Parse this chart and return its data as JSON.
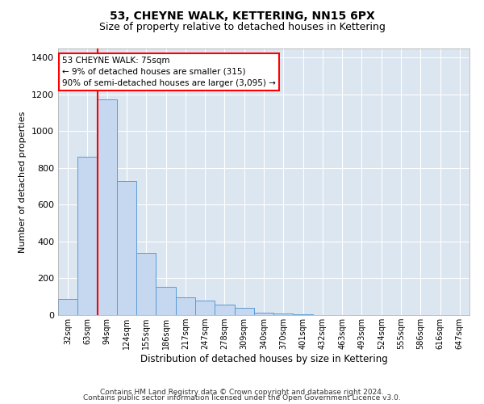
{
  "title": "53, CHEYNE WALK, KETTERING, NN15 6PX",
  "subtitle": "Size of property relative to detached houses in Kettering",
  "xlabel": "Distribution of detached houses by size in Kettering",
  "ylabel": "Number of detached properties",
  "bins": [
    "32sqm",
    "63sqm",
    "94sqm",
    "124sqm",
    "155sqm",
    "186sqm",
    "217sqm",
    "247sqm",
    "278sqm",
    "309sqm",
    "340sqm",
    "370sqm",
    "401sqm",
    "432sqm",
    "463sqm",
    "493sqm",
    "524sqm",
    "555sqm",
    "586sqm",
    "616sqm",
    "647sqm"
  ],
  "values": [
    90,
    860,
    1175,
    730,
    340,
    155,
    95,
    80,
    58,
    38,
    15,
    9,
    3,
    0,
    0,
    0,
    0,
    0,
    0,
    0,
    0
  ],
  "bar_color": "#c5d8ef",
  "bar_edge_color": "#5b9bd5",
  "bg_color": "#dce6f1",
  "grid_color": "#ffffff",
  "annotation_text": "53 CHEYNE WALK: 75sqm\n← 9% of detached houses are smaller (315)\n90% of semi-detached houses are larger (3,095) →",
  "footnote1": "Contains HM Land Registry data © Crown copyright and database right 2024.",
  "footnote2": "Contains public sector information licensed under the Open Government Licence v3.0.",
  "ylim": [
    0,
    1450
  ],
  "yticks": [
    0,
    200,
    400,
    600,
    800,
    1000,
    1200,
    1400
  ],
  "fig_bg": "#ffffff",
  "title_fontsize": 10,
  "subtitle_fontsize": 9
}
